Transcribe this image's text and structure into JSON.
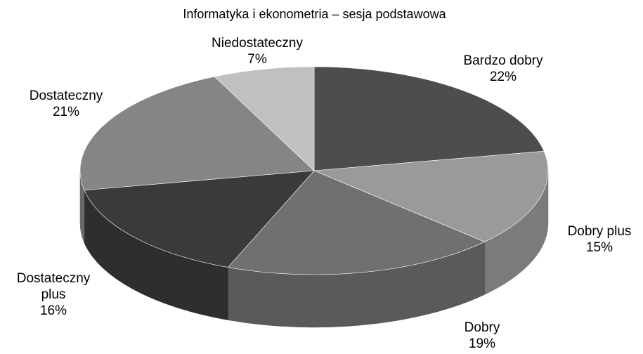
{
  "chart_data": {
    "type": "pie3d",
    "title": "Informatyka i ekonometria – sesja podstawowa",
    "categories": [
      "Bardzo dobry",
      "Dobry plus",
      "Dobry",
      "Dostateczny plus",
      "Dostateczny",
      "Niedostateczny"
    ],
    "values": [
      22,
      15,
      19,
      16,
      21,
      7
    ],
    "value_labels": [
      "22%",
      "15%",
      "19%",
      "16%",
      "21%",
      "7%"
    ],
    "colors": [
      "#4d4d4d",
      "#9a9a9a",
      "#707070",
      "#3a3a3a",
      "#858585",
      "#c0c0c0"
    ]
  }
}
